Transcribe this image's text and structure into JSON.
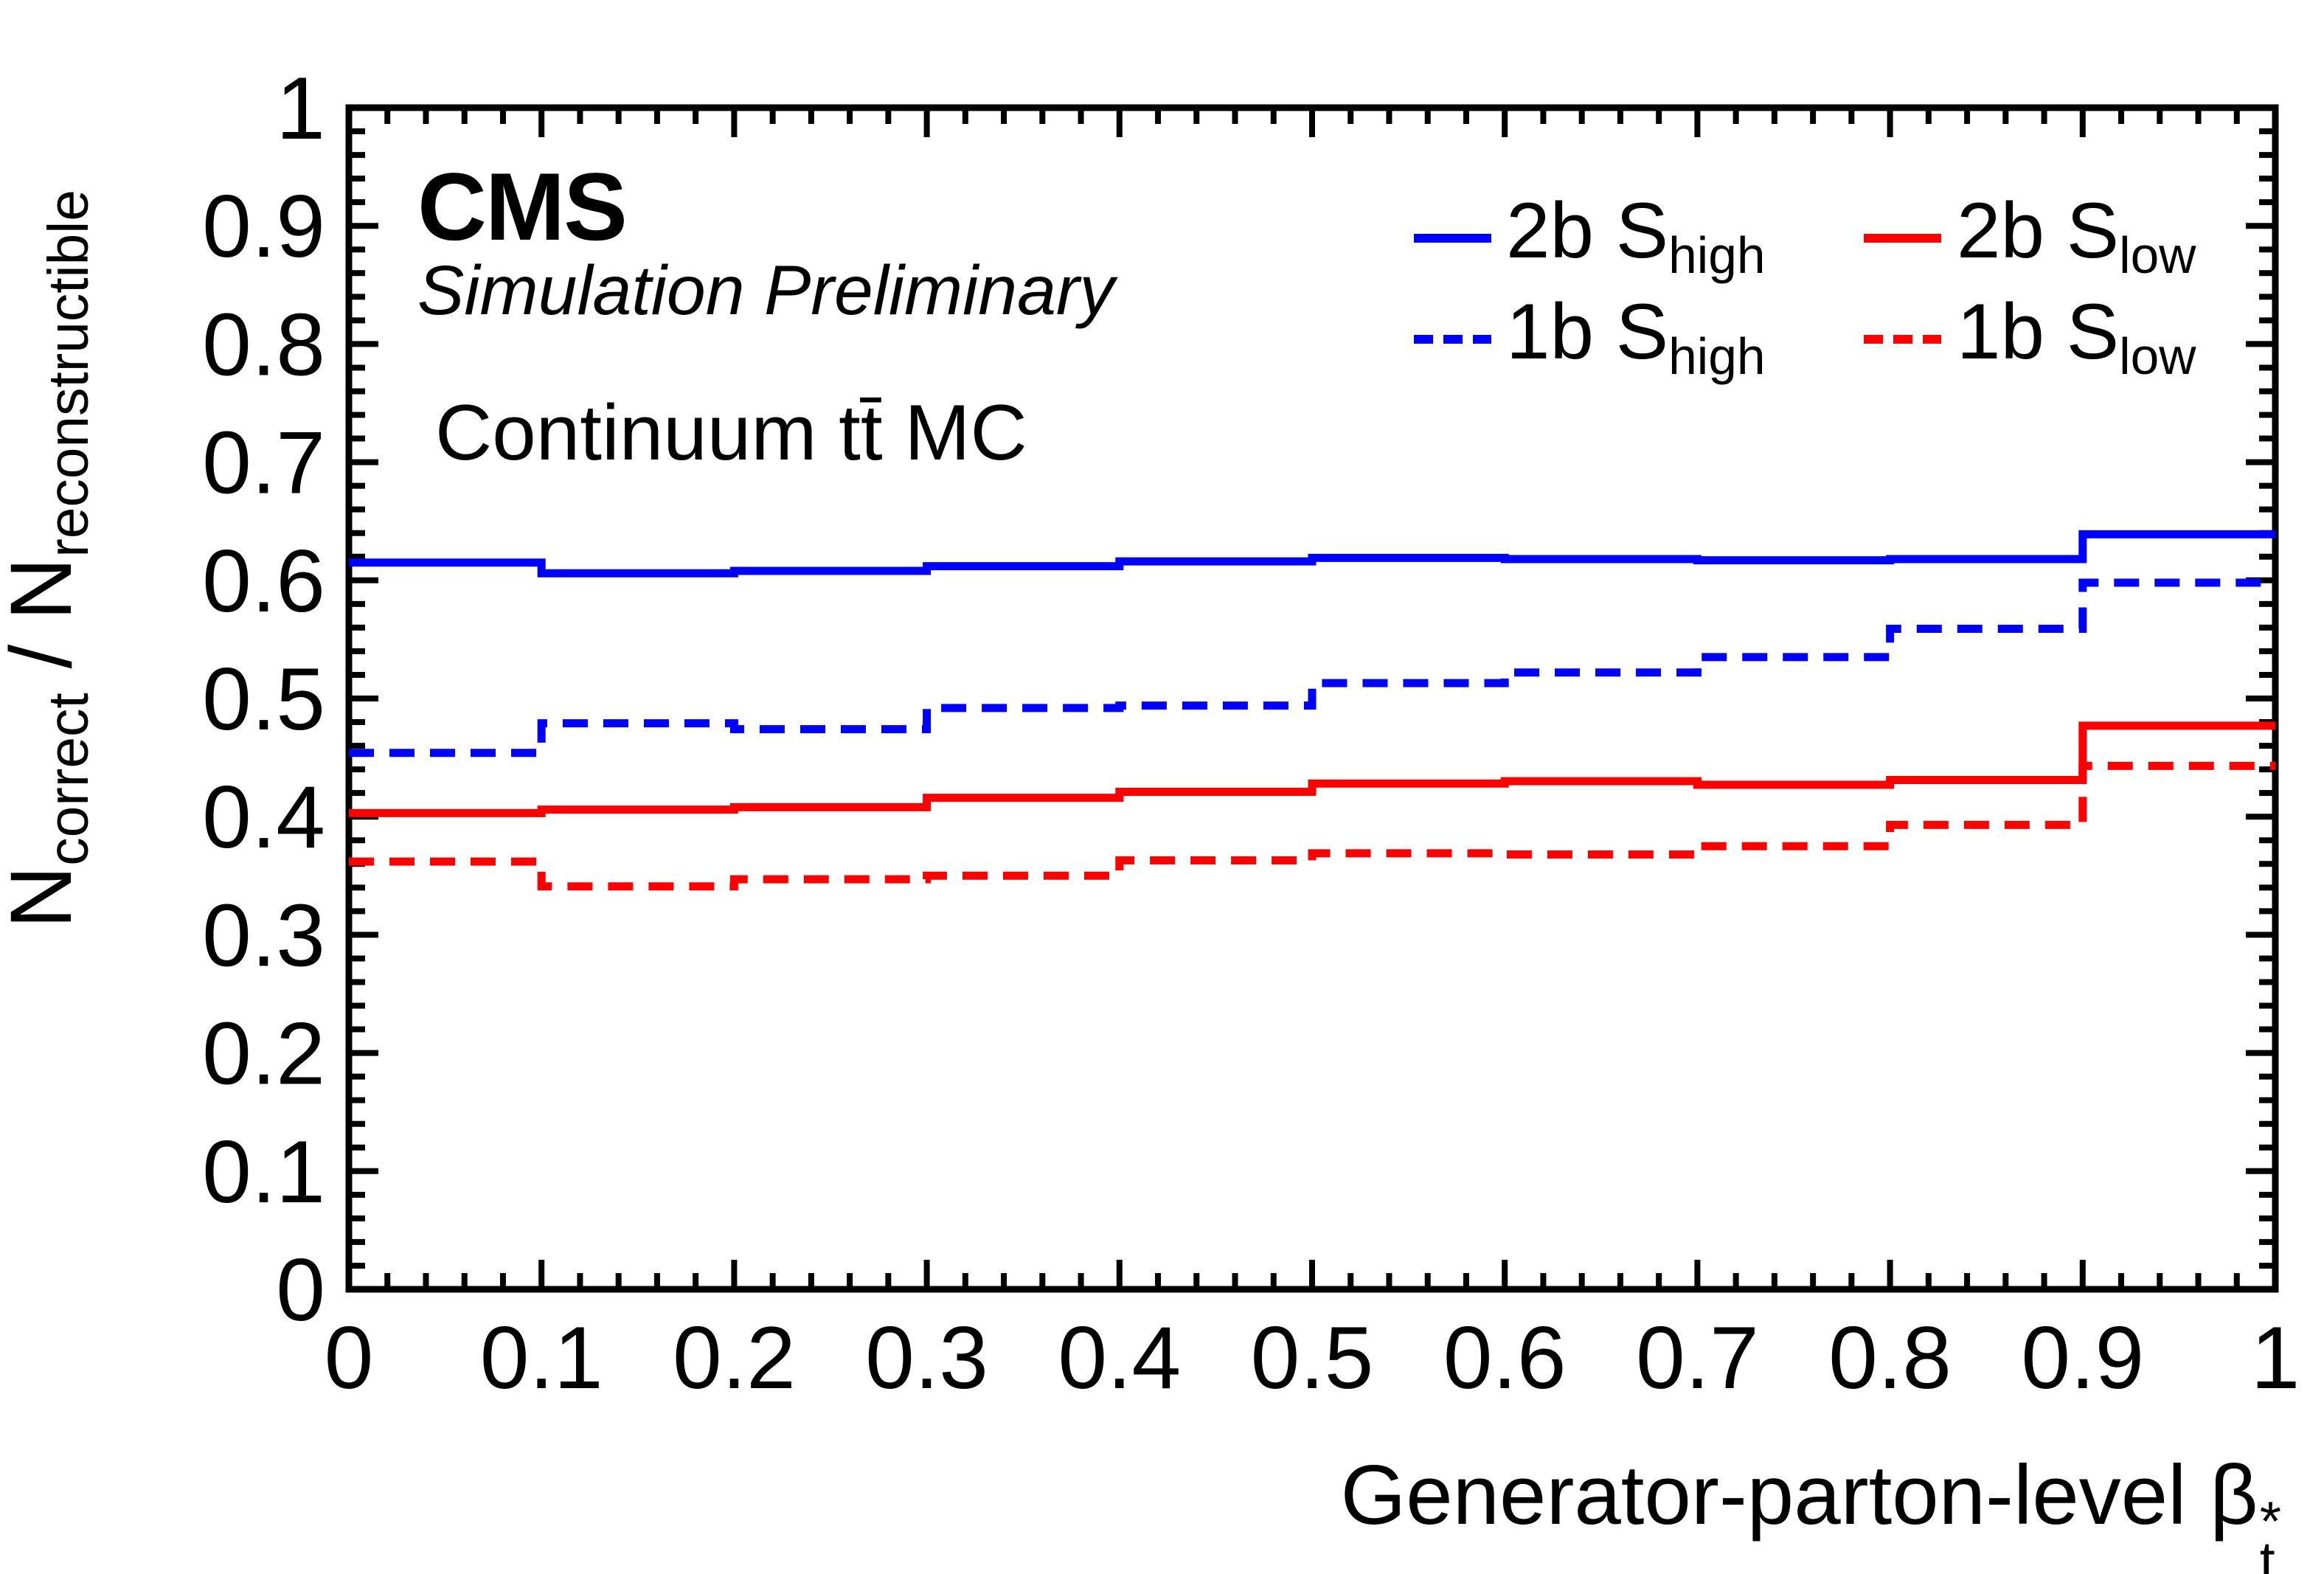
{
  "header": {
    "experiment": "CMS",
    "sublabel": "Simulation Preliminary",
    "dataset_label": "Continuum tt̄ MC"
  },
  "legend": [
    {
      "key": "2b-s-high",
      "main": "2b S",
      "sub": "high",
      "color": "#0000ff",
      "line": "solid"
    },
    {
      "key": "2b-s-low",
      "main": "2b S",
      "sub": "low",
      "color": "#ff0000",
      "line": "solid"
    },
    {
      "key": "1b-s-high",
      "main": "1b S",
      "sub": "high",
      "color": "#0000ff",
      "line": "dashed"
    },
    {
      "key": "1b-s-low",
      "main": "1b S",
      "sub": "low",
      "color": "#ff0000",
      "line": "dashed"
    }
  ],
  "axes": {
    "y_title": {
      "n_left": "N",
      "sub_left": "correct",
      "divider": " / N",
      "sub_right": "reconstructible"
    },
    "x_title": {
      "prefix": "Generator-parton-level ",
      "symbol": "β",
      "superscript": "*",
      "subscript": "t"
    },
    "x_tick_labels": [
      "0",
      "0.1",
      "0.2",
      "0.3",
      "0.4",
      "0.5",
      "0.6",
      "0.7",
      "0.8",
      "0.9",
      "1"
    ],
    "y_tick_labels": [
      "0",
      "0.1",
      "0.2",
      "0.3",
      "0.4",
      "0.5",
      "0.6",
      "0.7",
      "0.8",
      "0.9",
      "1"
    ]
  },
  "chart_data": {
    "type": "line",
    "subtype": "step-histogram",
    "title": "",
    "xlabel": "Generator-parton-level β*_t",
    "ylabel": "N_correct / N_reconstructible",
    "xlim": [
      0,
      1
    ],
    "ylim": [
      0,
      1
    ],
    "grid": false,
    "legend_position": "top-right",
    "bin_edges": [
      0,
      0.1,
      0.2,
      0.3,
      0.4,
      0.5,
      0.6,
      0.7,
      0.8,
      0.9,
      1
    ],
    "x_minor_tick_step": 0.02,
    "y_minor_tick_step": 0.02,
    "series": [
      {
        "name": "2b S_high",
        "key": "2b-s-high",
        "color": "#0000ff",
        "line": "solid",
        "values": [
          0.615,
          0.606,
          0.608,
          0.612,
          0.616,
          0.619,
          0.618,
          0.617,
          0.618,
          0.639
        ]
      },
      {
        "name": "1b S_high",
        "key": "1b-s-high",
        "color": "#0000ff",
        "line": "dashed",
        "values": [
          0.454,
          0.479,
          0.474,
          0.492,
          0.494,
          0.513,
          0.522,
          0.535,
          0.559,
          0.598
        ]
      },
      {
        "name": "2b S_low",
        "key": "2b-s-low",
        "color": "#ff0000",
        "line": "solid",
        "values": [
          0.403,
          0.406,
          0.408,
          0.416,
          0.421,
          0.428,
          0.43,
          0.427,
          0.431,
          0.477
        ]
      },
      {
        "name": "1b S_low",
        "key": "1b-s-low",
        "color": "#ff0000",
        "line": "dashed",
        "values": [
          0.362,
          0.341,
          0.347,
          0.35,
          0.363,
          0.369,
          0.368,
          0.375,
          0.393,
          0.443
        ]
      }
    ]
  }
}
